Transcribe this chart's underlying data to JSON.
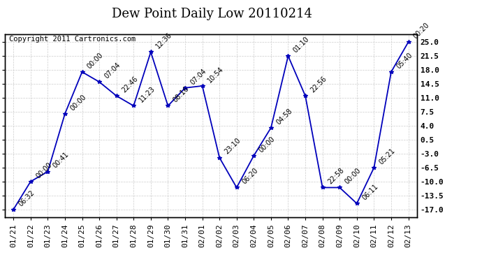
{
  "title": "Dew Point Daily Low 20110214",
  "copyright": "Copyright 2011 Cartronics.com",
  "x_labels": [
    "01/21",
    "01/22",
    "01/23",
    "01/24",
    "01/25",
    "01/26",
    "01/27",
    "01/28",
    "01/29",
    "01/30",
    "01/31",
    "02/01",
    "02/02",
    "02/03",
    "02/04",
    "02/05",
    "02/06",
    "02/07",
    "02/08",
    "02/09",
    "02/10",
    "02/11",
    "02/12",
    "02/13"
  ],
  "y_values": [
    -17.0,
    -10.0,
    -7.5,
    7.0,
    17.5,
    15.0,
    11.5,
    9.0,
    22.5,
    9.0,
    13.5,
    14.0,
    -4.0,
    -11.5,
    -3.5,
    3.5,
    21.5,
    11.5,
    -11.5,
    -11.5,
    -15.5,
    -6.5,
    17.5,
    25.0
  ],
  "time_labels": [
    "06:32",
    "00:00",
    "00:41",
    "00:00",
    "00:00",
    "07:04",
    "22:46",
    "11:23",
    "12:36",
    "08:16",
    "07:04",
    "10:54",
    "23:10",
    "06:20",
    "00:00",
    "04:58",
    "01:10",
    "22:56",
    "22:58",
    "00:00",
    "06:11",
    "05:21",
    "05:40",
    "00:20"
  ],
  "ylim": [
    -19.0,
    27.0
  ],
  "yticks": [
    -17.0,
    -13.5,
    -10.0,
    -6.5,
    -3.0,
    0.5,
    4.0,
    7.5,
    11.0,
    14.5,
    18.0,
    21.5,
    25.0
  ],
  "ytick_labels": [
    "-17.0",
    "-13.5",
    "-10.0",
    "-6.5",
    "-3.0",
    "0.5",
    "4.0",
    "7.5",
    "11.0",
    "14.5",
    "18.0",
    "21.5",
    "25.0"
  ],
  "line_color": "#0000bb",
  "marker_color": "#0000bb",
  "bg_color": "#ffffff",
  "grid_color": "#cccccc",
  "title_fontsize": 13,
  "label_fontsize": 7,
  "tick_fontsize": 8,
  "copyright_fontsize": 7.5
}
